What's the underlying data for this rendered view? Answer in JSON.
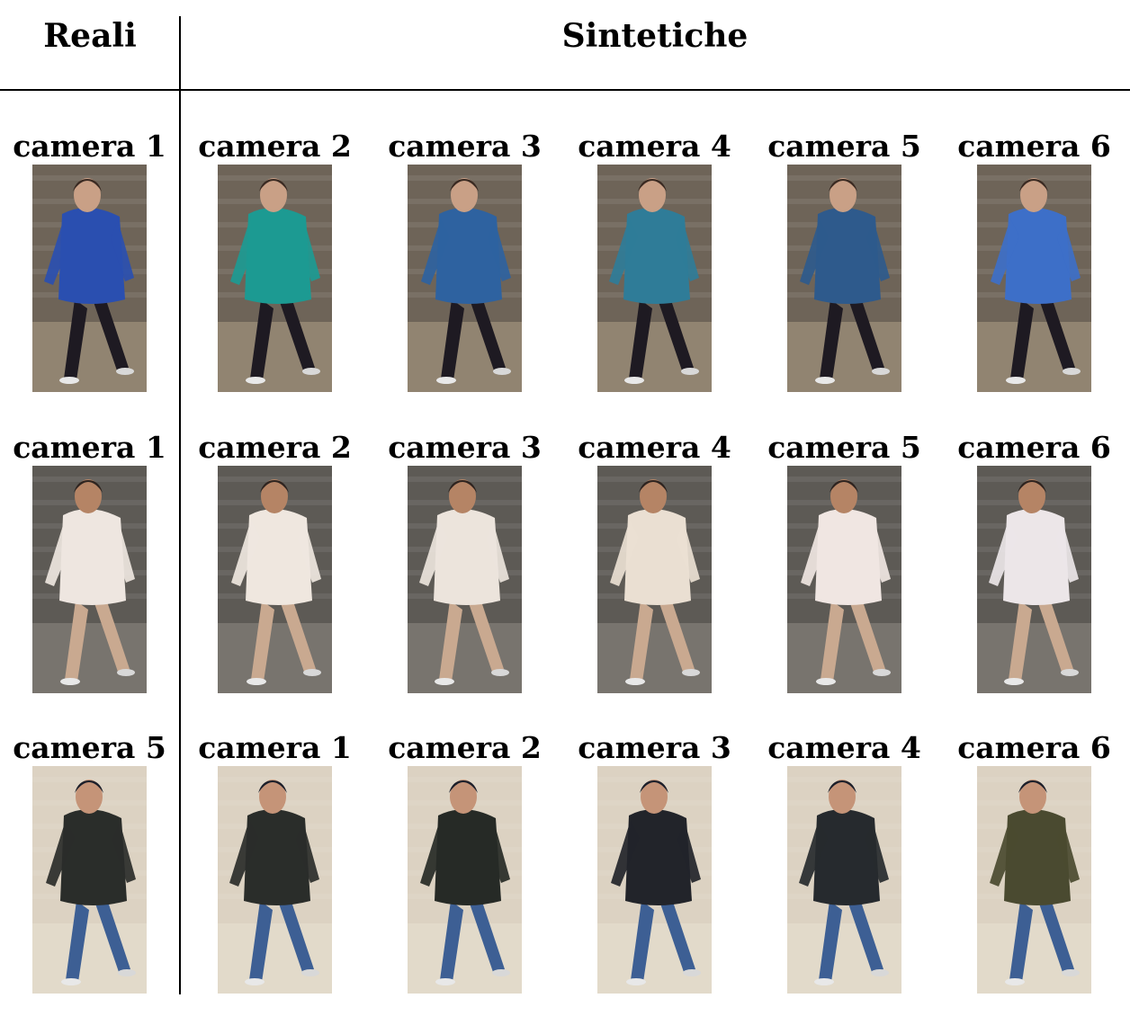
{
  "header": {
    "real": "Reali",
    "synthetic": "Sintetiche"
  },
  "rows": [
    {
      "person": "blue-jacket-walker",
      "colors": {
        "bg": "#6e6458",
        "jacket": "#2a4fb0",
        "pants": "#1e1a22",
        "skin": "#c9a086",
        "hair": "#3a2a22",
        "ground": "#9a8c78"
      },
      "real": "camera 1",
      "synthetic": [
        "camera 2",
        "camera  3",
        "camera 4",
        "camera 5",
        "camera  6"
      ],
      "synth_jackets": [
        "#1c9a92",
        "#2e62a0",
        "#2f7c98",
        "#2e5a8c",
        "#3d6fc8"
      ]
    },
    {
      "person": "white-jacket-walker",
      "colors": {
        "bg": "#5d5a55",
        "jacket": "#eee6e0",
        "pants": "#c9a990",
        "skin": "#b58465",
        "hair": "#2e2420",
        "ground": "#807a74"
      },
      "real": "camera 1",
      "synthetic": [
        "camera 2",
        "camera 3",
        "camera  4",
        "camera  5",
        "camera  6"
      ],
      "synth_jackets": [
        "#efe7df",
        "#ece4dc",
        "#eadfd2",
        "#f0e6e2",
        "#ece6e8"
      ]
    },
    {
      "person": "dark-hoodie-walker",
      "colors": {
        "bg": "#dcd2c2",
        "jacket": "#2a2d2a",
        "pants": "#3d5f94",
        "skin": "#c59478",
        "hair": "#1c1f2a",
        "ground": "#e4dccc"
      },
      "real": "camera 5",
      "synthetic": [
        "camera 1",
        "camera 2",
        "camera 3",
        "camera 4",
        "camera 6"
      ],
      "synth_jackets": [
        "#2a2d2a",
        "#262a26",
        "#22242a",
        "#262a2e",
        "#4a4a30"
      ]
    }
  ]
}
